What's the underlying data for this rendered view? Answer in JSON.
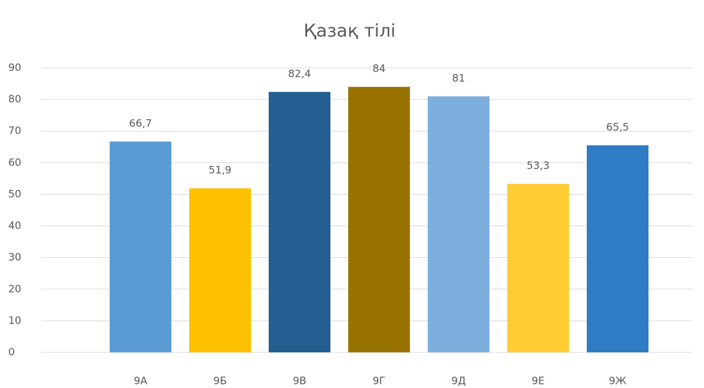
{
  "chart_data": {
    "type": "bar",
    "title": "Қазақ тілі",
    "categories": [
      "9А",
      "9Б",
      "9В",
      "9Г",
      "9Д",
      "9Е",
      "9Ж"
    ],
    "values": [
      66.7,
      51.9,
      82.4,
      84,
      81,
      53.3,
      65.5
    ],
    "value_labels": [
      "66,7",
      "51,9",
      "82,4",
      "84",
      "81",
      "53,3",
      "65,5"
    ],
    "colors": [
      "#5b9bd5",
      "#ffc000",
      "#255e91",
      "#997300",
      "#7cafdd",
      "#ffcd33",
      "#2f7bc4"
    ],
    "ylim": [
      0,
      90
    ],
    "yticks": [
      0,
      10,
      20,
      30,
      40,
      50,
      60,
      70,
      80,
      90
    ],
    "grid": true
  }
}
